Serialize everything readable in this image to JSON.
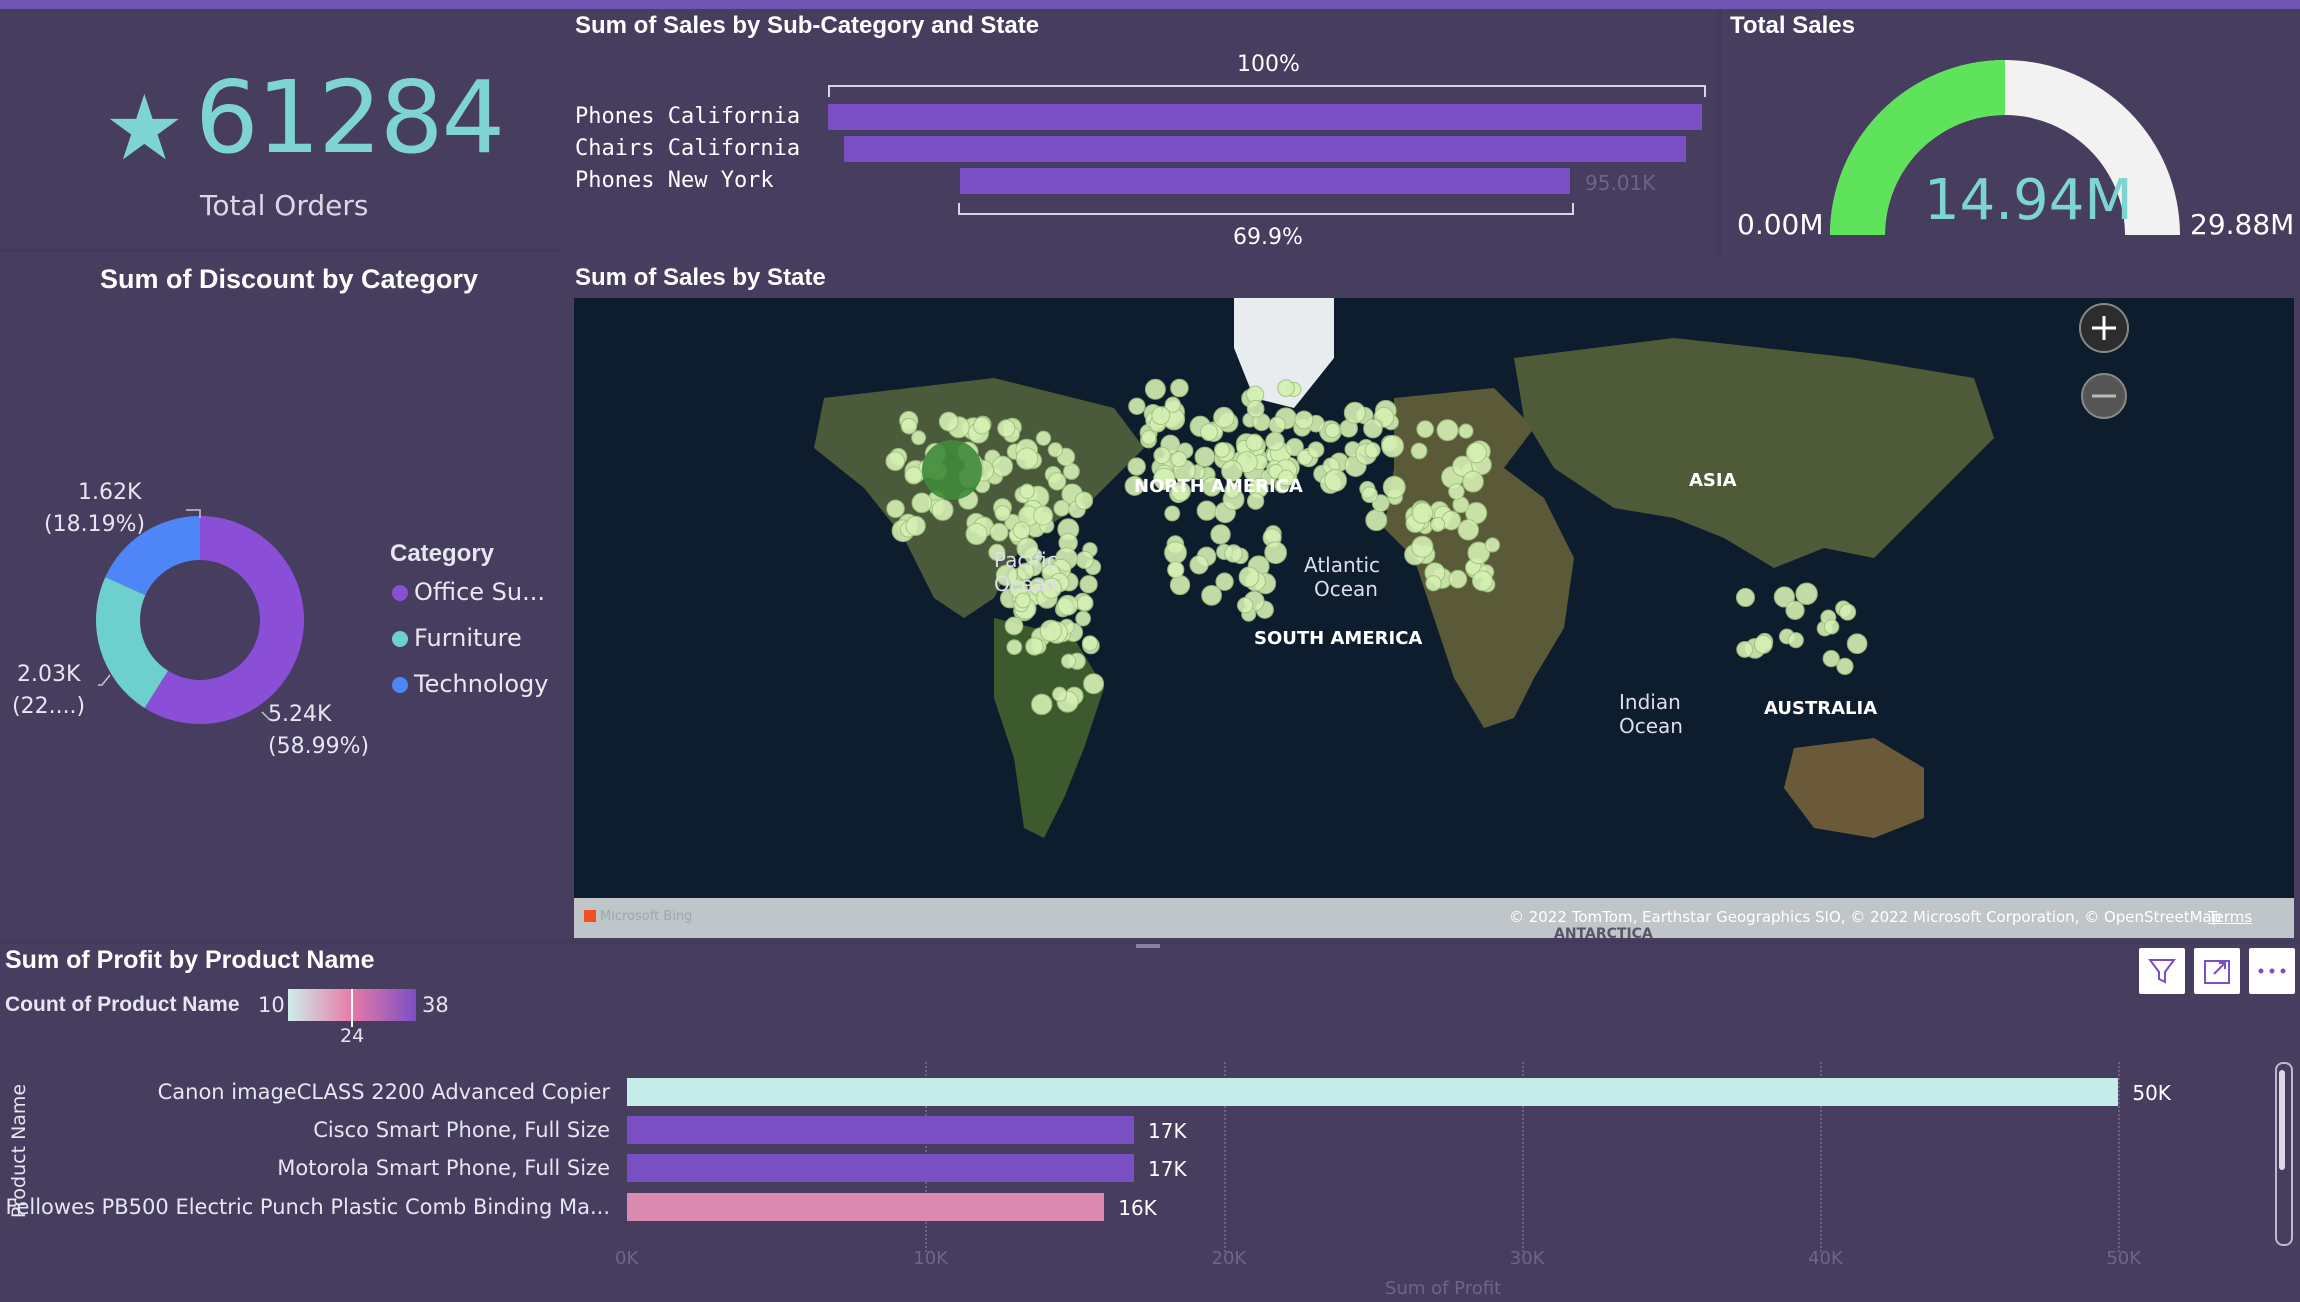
{
  "kpi": {
    "value": "61284",
    "label": "Total Orders"
  },
  "discount_chart": {
    "title": "Sum of Discount by Category"
  },
  "funnel": {
    "title": "Sum of Sales by Sub-Category and State",
    "top_pct": "100%",
    "bottom_pct": "69.9%",
    "rows": [
      {
        "label": "Phones California",
        "value": 136.0
      },
      {
        "label": "Chairs California",
        "value": 130.9
      },
      {
        "label": "Phones New York",
        "value": 95.01
      }
    ],
    "value_label": "95.01K"
  },
  "gauge": {
    "title": "Total Sales",
    "value": "14.94M",
    "min": "0.00M",
    "max": "29.88M",
    "fraction": 0.5
  },
  "donut": {
    "legend_title": "Category",
    "legend": [
      {
        "name": "Office Su...",
        "color": "#8a4fd6"
      },
      {
        "name": "Furniture",
        "color": "#6ed0ce"
      },
      {
        "name": "Technology",
        "color": "#4f86f7"
      }
    ],
    "labels": {
      "tech_value": "1.62K",
      "tech_pct": "(18.19%)",
      "furn_value": "2.03K",
      "furn_pct": "(22....)",
      "office_value": "5.24K",
      "office_pct": "(58.99%)"
    }
  },
  "map": {
    "title": "Sum of Sales by State",
    "labels": {
      "na": "NORTH AMERICA",
      "asia": "ASIA",
      "sa": "SOUTH AMERICA",
      "aus": "AUSTRALIA",
      "pacific1": "Pacific",
      "pacific2": "Ocean",
      "atlantic1": "Atlantic",
      "atlantic2": "Ocean",
      "indian1": "Indian",
      "indian2": "Ocean",
      "antarctica": "ANTARCTICA",
      "attribution": "© 2022 TomTom, Earthstar Geographics SIO, © 2022 Microsoft Corporation, © OpenStreetMap",
      "terms": "Terms",
      "bing": "Microsoft Bing"
    }
  },
  "profit_chart": {
    "title": "Sum of Profit by Product Name",
    "legend_label": "Count of Product Name",
    "legend_min": "10",
    "legend_max": "38",
    "legend_mid": "24",
    "ylabel": "Product Name",
    "xlabel": "Sum of Profit",
    "ticks": [
      "0K",
      "10K",
      "20K",
      "30K",
      "40K",
      "50K"
    ]
  },
  "chart_data": [
    {
      "type": "bar",
      "orientation": "horizontal",
      "title": "Sum of Sales by Sub-Category and State",
      "categories": [
        "Phones California",
        "Chairs California",
        "Phones New York"
      ],
      "values": [
        136.0,
        130.9,
        95.01
      ],
      "units": "K"
    },
    {
      "type": "pie",
      "title": "Sum of Discount by Category",
      "categories": [
        "Office Su...",
        "Furniture",
        "Technology"
      ],
      "values": [
        5.24,
        2.03,
        1.62
      ],
      "units": "K",
      "percent": [
        58.99,
        22.82,
        18.19
      ],
      "legend_position": "right"
    },
    {
      "type": "bar",
      "orientation": "horizontal",
      "title": "Sum of Profit by Product Name",
      "categories": [
        "Canon imageCLASS 2200 Advanced Copier",
        "Cisco Smart Phone, Full Size",
        "Motorola Smart Phone, Full Size",
        "Fellowes PB500 Electric Punch Plastic Comb Binding Ma..."
      ],
      "values": [
        50,
        17,
        17,
        16
      ],
      "value_labels": [
        "50K",
        "17K",
        "17K",
        "16K"
      ],
      "colors": [
        "#c6ecea",
        "#7b4fc4",
        "#7b4fc4",
        "#d98aae"
      ],
      "xlabel": "Sum of Profit",
      "ylabel": "Product Name",
      "xlim": [
        0,
        52
      ],
      "grid": true
    }
  ]
}
